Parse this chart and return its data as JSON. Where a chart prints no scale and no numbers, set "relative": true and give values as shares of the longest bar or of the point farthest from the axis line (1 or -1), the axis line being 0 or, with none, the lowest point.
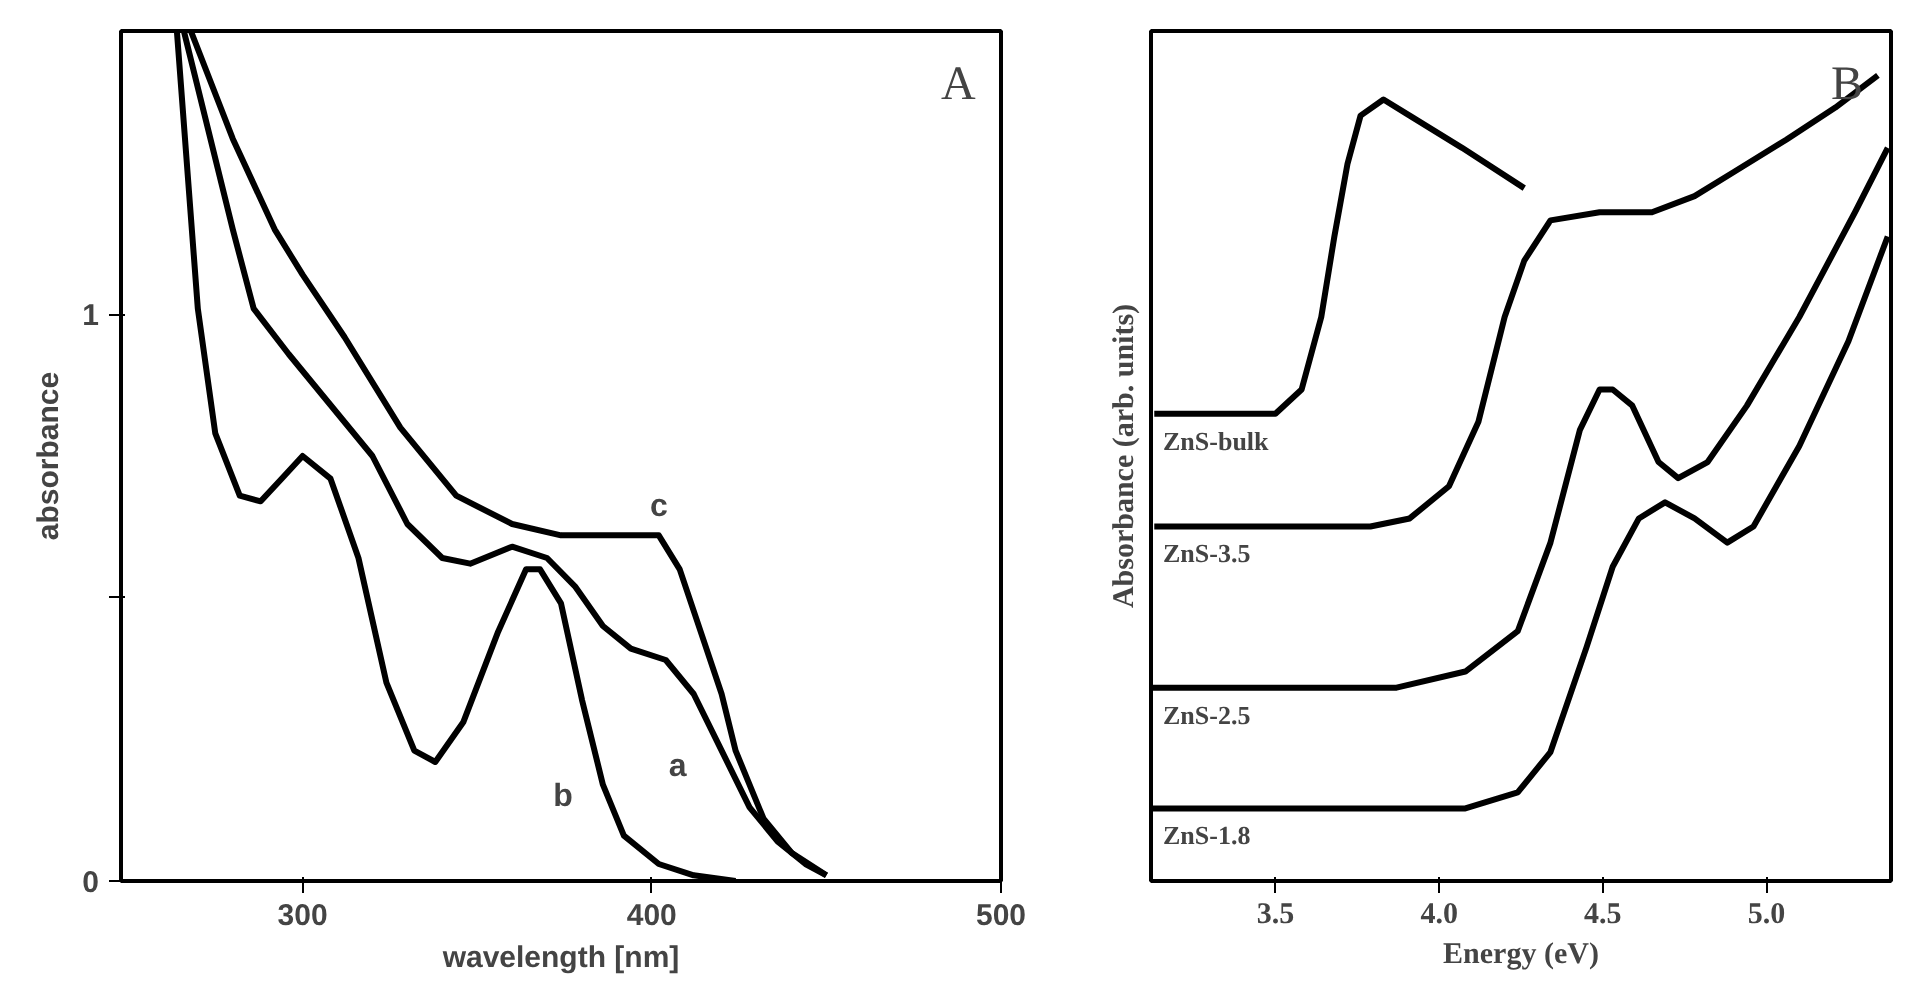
{
  "chart_data": [
    {
      "type": "line",
      "xlabel": "wavelength [nm]",
      "ylabel": "absorbance",
      "xlim": [
        248,
        500
      ],
      "ylim": [
        0,
        1.5
      ],
      "xticks": [
        300,
        400,
        500
      ],
      "yticks": [
        0,
        {
          "value": 0.5,
          "label": null
        },
        1
      ],
      "grid": false,
      "legend": false,
      "marker": "none",
      "line_style": "solid",
      "series": [
        {
          "name": "a",
          "color": "#000000",
          "x": [
            266,
            272,
            280,
            286,
            296,
            308,
            320,
            330,
            340,
            348,
            360,
            370,
            378,
            386,
            394,
            404,
            412,
            420,
            428,
            436,
            444,
            450
          ],
          "values": [
            1.5,
            1.35,
            1.15,
            1.01,
            0.93,
            0.84,
            0.75,
            0.63,
            0.57,
            0.56,
            0.59,
            0.57,
            0.52,
            0.45,
            0.41,
            0.39,
            0.33,
            0.23,
            0.13,
            0.07,
            0.03,
            0.01
          ]
        },
        {
          "name": "b",
          "color": "#000000",
          "x": [
            264,
            270,
            275,
            282,
            288,
            294,
            300,
            308,
            316,
            324,
            332,
            338,
            346,
            356,
            364,
            368,
            374,
            380,
            386,
            392,
            402,
            412,
            424
          ],
          "values": [
            1.5,
            1.01,
            0.79,
            0.68,
            0.67,
            0.71,
            0.75,
            0.71,
            0.57,
            0.35,
            0.23,
            0.21,
            0.28,
            0.44,
            0.55,
            0.55,
            0.49,
            0.32,
            0.17,
            0.08,
            0.03,
            0.01,
            0.0
          ]
        },
        {
          "name": "c",
          "color": "#000000",
          "x": [
            268,
            280,
            292,
            300,
            312,
            328,
            344,
            360,
            374,
            402,
            408,
            414,
            420,
            424,
            432,
            440,
            450
          ],
          "values": [
            1.5,
            1.31,
            1.15,
            1.07,
            0.96,
            0.8,
            0.68,
            0.63,
            0.61,
            0.61,
            0.55,
            0.44,
            0.33,
            0.23,
            0.11,
            0.05,
            0.01
          ]
        }
      ],
      "annotations": [
        "A"
      ]
    },
    {
      "type": "line",
      "relative": true,
      "xlabel": "Energy (eV)",
      "ylabel": "Absorbance (arb. units)",
      "xlim": [
        3.12,
        5.38
      ],
      "xticks": [
        {
          "value": 3.5,
          "label": "3.5"
        },
        {
          "value": 4.0,
          "label": "4.0"
        },
        {
          "value": 4.5,
          "label": "4.5"
        },
        {
          "value": 5.0,
          "label": "5.0"
        }
      ],
      "grid": false,
      "legend": false,
      "marker": "none",
      "line_style": "solid",
      "series": [
        {
          "name": "ZnS-bulk",
          "color": "#000000",
          "x": [
            3.13,
            3.5,
            3.58,
            3.64,
            3.68,
            3.72,
            3.76,
            3.83,
            3.91,
            4.07,
            4.26
          ],
          "values": [
            0.58,
            0.58,
            0.61,
            0.7,
            0.8,
            0.89,
            0.95,
            0.97,
            0.95,
            0.91,
            0.86
          ]
        },
        {
          "name": "ZnS-3.5",
          "color": "#000000",
          "x": [
            3.13,
            3.79,
            3.91,
            4.03,
            4.12,
            4.2,
            4.26,
            4.34,
            4.49,
            4.65,
            4.78,
            4.9,
            5.06,
            5.21,
            5.34
          ],
          "values": [
            0.44,
            0.44,
            0.45,
            0.49,
            0.57,
            0.7,
            0.77,
            0.82,
            0.83,
            0.83,
            0.85,
            0.88,
            0.92,
            0.96,
            1.0
          ]
        },
        {
          "name": "ZnS-2.5",
          "color": "#000000",
          "x": [
            3.12,
            3.87,
            4.08,
            4.24,
            4.34,
            4.43,
            4.49,
            4.53,
            4.59,
            4.67,
            4.73,
            4.82,
            4.94,
            5.1,
            5.27,
            5.37
          ],
          "values": [
            0.24,
            0.24,
            0.26,
            0.31,
            0.42,
            0.56,
            0.61,
            0.61,
            0.59,
            0.52,
            0.5,
            0.52,
            0.59,
            0.7,
            0.83,
            0.91
          ]
        },
        {
          "name": "ZnS-1.8",
          "color": "#000000",
          "x": [
            3.12,
            4.08,
            4.24,
            4.34,
            4.45,
            4.53,
            4.61,
            4.69,
            4.78,
            4.88,
            4.96,
            5.1,
            5.25,
            5.37
          ],
          "values": [
            0.09,
            0.09,
            0.11,
            0.16,
            0.29,
            0.39,
            0.45,
            0.47,
            0.45,
            0.42,
            0.44,
            0.54,
            0.67,
            0.8
          ]
        }
      ],
      "annotations": [
        "B"
      ]
    }
  ]
}
